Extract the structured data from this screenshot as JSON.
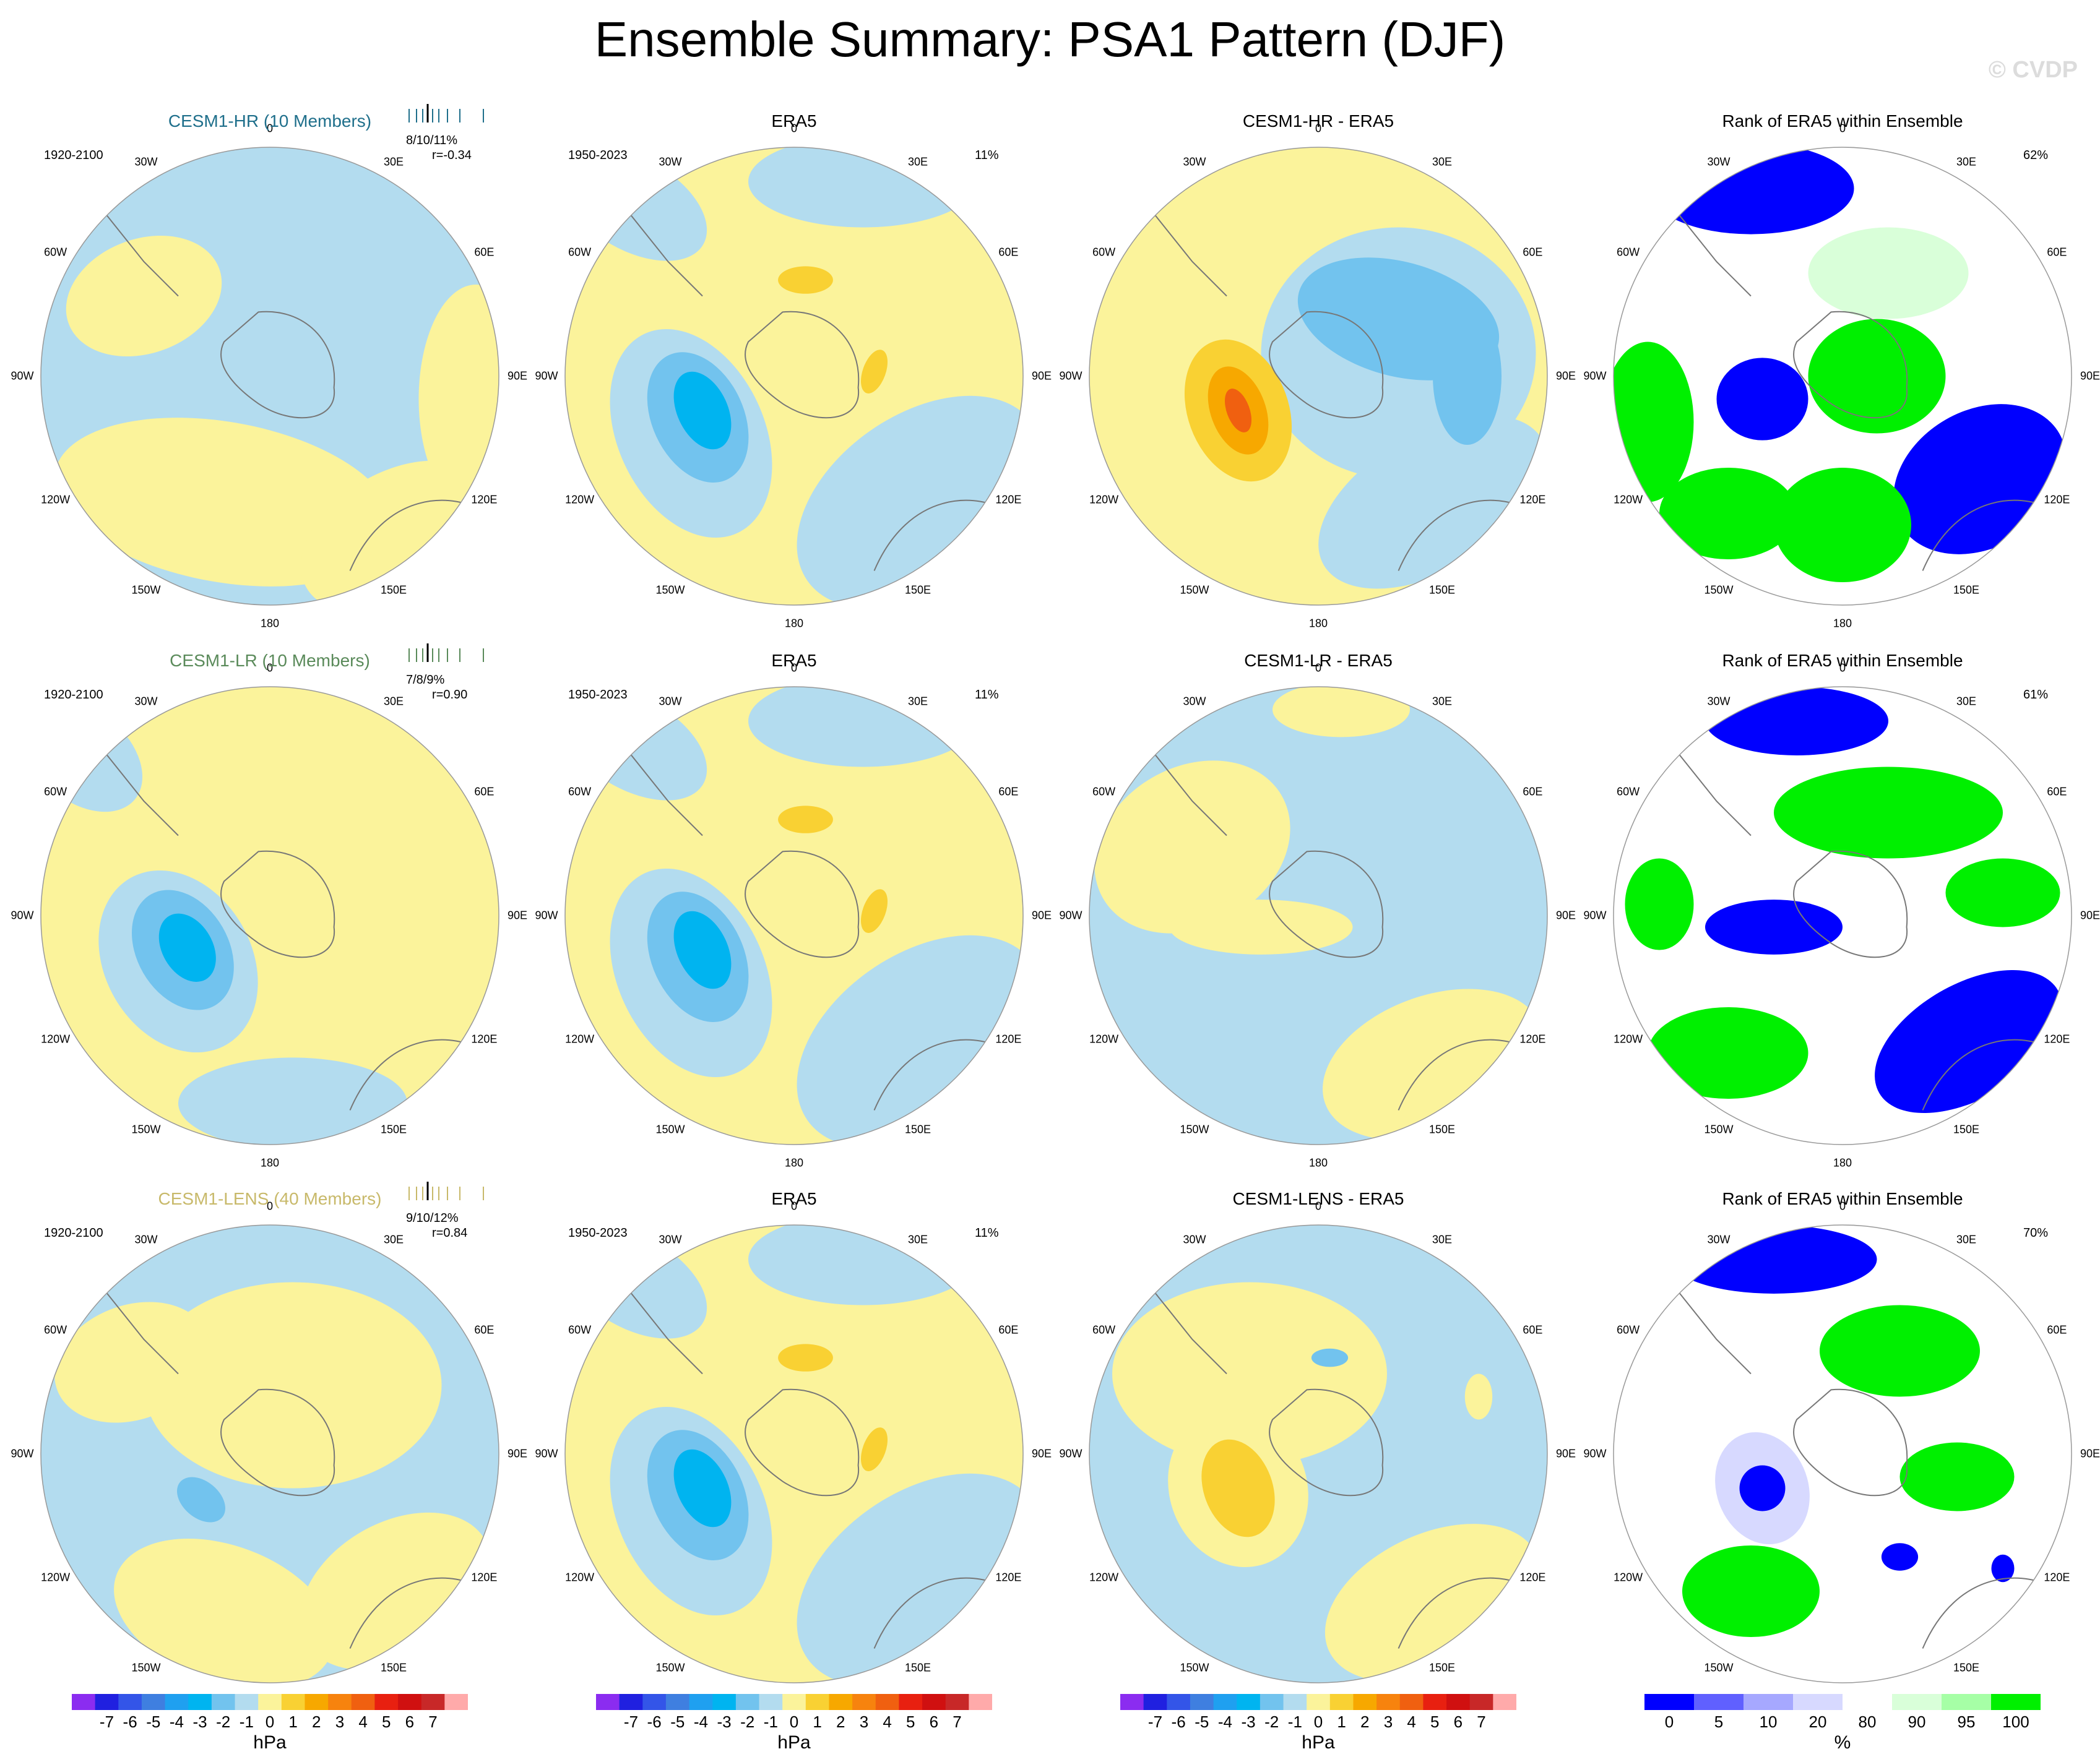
{
  "title": "Ensemble Summary: PSA1 Pattern (DJF)",
  "watermark": "© CVDP",
  "colors": {
    "model_hr": "#1f6f8b",
    "model_lr": "#5a8a5a",
    "model_lens": "#c8b96a",
    "neg1": "#b3dcef",
    "neg2": "#72c3ee",
    "neg3": "#00b4f0",
    "neg4": "#3f7fe0",
    "pos1": "#fbf39b",
    "pos2": "#f9d133",
    "pos3": "#f7a800",
    "pos4": "#f06010",
    "rank_lo": "#0000ff",
    "rank_hi": "#00f000",
    "rank_lo_light": "#d7d9ff",
    "rank_hi_light": "#d9ffd9"
  },
  "rows": [
    {
      "model": "CESM1-HR (10 Members)",
      "model_years": "1920-2100",
      "stats": "8/10/11%",
      "corr": "r=-0.34",
      "obs_title": "ERA5",
      "obs_years": "1950-2023",
      "obs_pct": "11%",
      "diff_title": "CESM1-HR - ERA5",
      "rank_title": "Rank of ERA5 within Ensemble",
      "rank_pct": "62%"
    },
    {
      "model": "CESM1-LR (10 Members)",
      "model_years": "1920-2100",
      "stats": "7/8/9%",
      "corr": "r=0.90",
      "obs_title": "ERA5",
      "obs_years": "1950-2023",
      "obs_pct": "11%",
      "diff_title": "CESM1-LR - ERA5",
      "rank_title": "Rank of ERA5 within Ensemble",
      "rank_pct": "61%"
    },
    {
      "model": "CESM1-LENS (40 Members)",
      "model_years": "1920-2100",
      "stats": "9/10/12%",
      "corr": "r=0.84",
      "obs_title": "ERA5",
      "obs_years": "1950-2023",
      "obs_pct": "11%",
      "diff_title": "CESM1-LENS - ERA5",
      "rank_title": "Rank of ERA5 within Ensemble",
      "rank_pct": "70%"
    }
  ],
  "lon_labels": [
    "0",
    "30E",
    "60E",
    "90E",
    "120E",
    "150E",
    "180",
    "150W",
    "120W",
    "90W",
    "60W",
    "30W"
  ],
  "chart_data": {
    "type": "heatmap",
    "projection": "south polar stereographic",
    "units_slp": "hPa",
    "units_rank": "%",
    "colorbar_slp_ticks": [
      "-7",
      "-6",
      "-5",
      "-4",
      "-3",
      "-2",
      "-1",
      "0",
      "1",
      "2",
      "3",
      "4",
      "5",
      "6",
      "7"
    ],
    "colorbar_rank_ticks": [
      "0",
      "5",
      "10",
      "20",
      "80",
      "90",
      "95",
      "100"
    ]
  }
}
